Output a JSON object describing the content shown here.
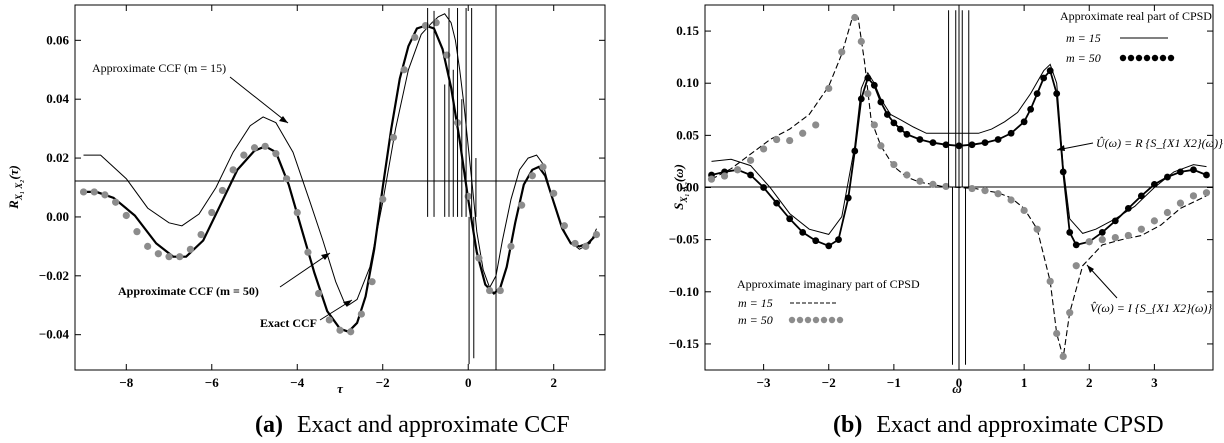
{
  "chart_data": [
    {
      "type": "line",
      "caption": {
        "tag": "(a)",
        "text": "Exact and approximate CCF"
      },
      "xlabel": "τ",
      "ylabel": "R_{X1 X2}(τ)",
      "xlim": [
        -9.2,
        3.2
      ],
      "ylim": [
        -0.052,
        0.072
      ],
      "xticks": [
        -8,
        -6,
        -4,
        -2,
        0,
        2
      ],
      "xtick_labels": [
        "−8",
        "−6",
        "−4",
        "−2",
        "0",
        "2"
      ],
      "yticks": [
        -0.04,
        -0.02,
        0.0,
        0.02,
        0.04,
        0.06
      ],
      "ytick_labels": [
        "−0.04",
        "−0.02",
        "0.00",
        "0.02",
        "0.04",
        "0.06"
      ],
      "annotations": [
        {
          "text": "Approximate CCF (m = 15)",
          "bold": false
        },
        {
          "text": "Approximate CCF (m = 50)",
          "bold": true
        },
        {
          "text": "Exact CCF",
          "bold": true
        }
      ],
      "series": [
        {
          "style": "thin-solid",
          "x": [
            -9.0,
            -8.6,
            -8.0,
            -7.5,
            -7.0,
            -6.7,
            -6.3,
            -5.9,
            -5.5,
            -5.1,
            -4.8,
            -4.5,
            -4.1,
            -3.7,
            -3.4,
            -3.1,
            -2.9,
            -2.8,
            -2.6,
            -2.3,
            -2.0,
            -1.7,
            -1.4,
            -1.1,
            -0.85,
            -0.7,
            -0.55,
            -0.4,
            -0.3,
            -0.2,
            -0.1,
            0.0,
            0.1,
            0.2,
            0.35,
            0.5,
            0.65,
            0.8,
            1.0,
            1.2,
            1.4,
            1.6,
            1.75,
            1.9,
            2.1,
            2.35,
            2.6,
            2.85,
            3.0
          ],
          "y": [
            0.021,
            0.021,
            0.013,
            0.003,
            -0.002,
            -0.003,
            0.001,
            0.01,
            0.022,
            0.031,
            0.034,
            0.032,
            0.022,
            0.005,
            -0.008,
            -0.022,
            -0.029,
            -0.03,
            -0.028,
            -0.017,
            0.005,
            0.03,
            0.05,
            0.062,
            0.066,
            0.068,
            0.069,
            0.066,
            0.06,
            0.05,
            0.038,
            0.024,
            0.01,
            -0.005,
            -0.018,
            -0.024,
            -0.02,
            -0.008,
            0.006,
            0.016,
            0.02,
            0.021,
            0.018,
            0.01,
            0.0,
            -0.008,
            -0.011,
            -0.009,
            -0.004
          ]
        },
        {
          "style": "thick-solid",
          "x": [
            -9.0,
            -8.7,
            -8.3,
            -7.8,
            -7.3,
            -6.9,
            -6.6,
            -6.2,
            -5.8,
            -5.4,
            -5.0,
            -4.75,
            -4.5,
            -4.2,
            -3.9,
            -3.6,
            -3.3,
            -3.0,
            -2.8,
            -2.6,
            -2.4,
            -2.2,
            -2.0,
            -1.8,
            -1.6,
            -1.4,
            -1.2,
            -1.0,
            -0.8,
            -0.6,
            -0.4,
            -0.2,
            0.0,
            0.2,
            0.4,
            0.6,
            0.75,
            0.9,
            1.1,
            1.3,
            1.5,
            1.65,
            1.8,
            2.0,
            2.2,
            2.4,
            2.6,
            2.8,
            3.0
          ],
          "y": [
            0.0085,
            0.0085,
            0.0065,
            0.0005,
            -0.009,
            -0.0135,
            -0.0135,
            -0.008,
            0.004,
            0.016,
            0.0225,
            0.024,
            0.022,
            0.011,
            -0.004,
            -0.019,
            -0.032,
            -0.038,
            -0.039,
            -0.036,
            -0.027,
            -0.011,
            0.01,
            0.03,
            0.047,
            0.058,
            0.064,
            0.065,
            0.064,
            0.057,
            0.044,
            0.026,
            0.006,
            -0.012,
            -0.023,
            -0.026,
            -0.024,
            -0.017,
            -0.002,
            0.011,
            0.016,
            0.017,
            0.014,
            0.005,
            -0.004,
            -0.009,
            -0.01,
            -0.009,
            -0.006
          ]
        },
        {
          "style": "grey-dots",
          "x": [
            -9.0,
            -8.75,
            -8.5,
            -8.25,
            -8.0,
            -7.75,
            -7.5,
            -7.25,
            -7.0,
            -6.75,
            -6.5,
            -6.25,
            -6.0,
            -5.75,
            -5.5,
            -5.25,
            -5.0,
            -4.75,
            -4.5,
            -4.25,
            -4.0,
            -3.75,
            -3.5,
            -3.25,
            -3.0,
            -2.75,
            -2.5,
            -2.25,
            -2.0,
            -1.75,
            -1.5,
            -1.25,
            -1.0,
            -0.75,
            -0.5,
            -0.25,
            0.0,
            0.25,
            0.5,
            0.75,
            1.0,
            1.25,
            1.5,
            1.75,
            2.0,
            2.25,
            2.5,
            2.75,
            3.0
          ],
          "y": [
            0.0085,
            0.0085,
            0.0075,
            0.005,
            0.0005,
            -0.005,
            -0.01,
            -0.0125,
            -0.0135,
            -0.0135,
            -0.011,
            -0.006,
            0.0015,
            0.009,
            0.016,
            0.021,
            0.0235,
            0.024,
            0.0215,
            0.013,
            0.0015,
            -0.012,
            -0.026,
            -0.035,
            -0.0385,
            -0.039,
            -0.033,
            -0.022,
            0.006,
            0.027,
            0.05,
            0.061,
            0.065,
            0.066,
            0.055,
            0.032,
            0.007,
            -0.014,
            -0.025,
            -0.025,
            -0.01,
            0.004,
            0.014,
            0.017,
            0.008,
            -0.003,
            -0.009,
            -0.01,
            -0.006
          ]
        },
        {
          "style": "spikes",
          "x": [
            -0.95,
            -0.8,
            -0.55,
            -0.45,
            -0.35,
            -0.25,
            -0.15,
            -0.05,
            0.02,
            0.08,
            0.13,
            0.18
          ],
          "y": [
            0.071,
            0.07,
            0.045,
            0.071,
            0.05,
            0.071,
            0.04,
            0.071,
            -0.05,
            0.071,
            -0.048,
            0.02
          ]
        }
      ]
    },
    {
      "type": "line",
      "caption": {
        "tag": "(b)",
        "text": "Exact and approximate CPSD"
      },
      "xlabel": "ω",
      "ylabel": "S_{X1 X2}(ω)",
      "xlim": [
        -3.9,
        3.9
      ],
      "ylim": [
        -0.175,
        0.175
      ],
      "xticks": [
        -3,
        -2,
        -1,
        0,
        1,
        2,
        3
      ],
      "xtick_labels": [
        "−3",
        "−2",
        "−1",
        "0",
        "1",
        "2",
        "3"
      ],
      "yticks": [
        -0.15,
        -0.1,
        -0.05,
        0.0,
        0.05,
        0.1,
        0.15
      ],
      "ytick_labels": [
        "−0.15",
        "−0.10",
        "−0.05",
        "0.00",
        "0.05",
        "0.10",
        "0.15"
      ],
      "legend_top_right": {
        "title": "Approximate real part of CPSD",
        "entries": [
          {
            "label": "m = 15",
            "style": "thin-solid"
          },
          {
            "label": "m = 50",
            "style": "black-dots"
          }
        ]
      },
      "legend_bottom_left": {
        "title": "Approximate imaginary part of CPSD",
        "entries": [
          {
            "label": "m = 15",
            "style": "dashed"
          },
          {
            "label": "m = 50",
            "style": "grey-dots"
          }
        ]
      },
      "annotations": [
        {
          "text": "Û(ω) = R {S_{X1 X2}(ω)}"
        },
        {
          "text": "V̂(ω) = I {S_{X1 X2}(ω)}"
        }
      ],
      "series": [
        {
          "name": "real part",
          "style": "thin-solid",
          "x": [
            -3.8,
            -3.5,
            -3.2,
            -2.9,
            -2.6,
            -2.3,
            -2.0,
            -1.8,
            -1.6,
            -1.5,
            -1.4,
            -1.3,
            -1.2,
            -1.05,
            -0.9,
            -0.7,
            -0.5,
            -0.3,
            0.3,
            0.5,
            0.7,
            0.9,
            1.1,
            1.3,
            1.4,
            1.5,
            1.6,
            1.7,
            1.9,
            2.1,
            2.4,
            2.7,
            3.0,
            3.3,
            3.6,
            3.8
          ],
          "y": [
            0.025,
            0.027,
            0.021,
            0.0,
            -0.025,
            -0.04,
            -0.045,
            -0.028,
            0.04,
            0.095,
            0.11,
            0.1,
            0.085,
            0.07,
            0.065,
            0.058,
            0.052,
            0.052,
            0.052,
            0.056,
            0.063,
            0.072,
            0.09,
            0.112,
            0.118,
            0.1,
            0.02,
            -0.03,
            -0.044,
            -0.04,
            -0.03,
            -0.018,
            0.0,
            0.015,
            0.022,
            0.02
          ]
        },
        {
          "name": "real part",
          "style": "black-dots-line",
          "x": [
            -3.8,
            -3.6,
            -3.4,
            -3.2,
            -3.0,
            -2.8,
            -2.6,
            -2.4,
            -2.2,
            -2.0,
            -1.85,
            -1.7,
            -1.6,
            -1.5,
            -1.4,
            -1.3,
            -1.2,
            -1.1,
            -1.0,
            -0.9,
            -0.8,
            -0.6,
            -0.4,
            -0.2,
            0.0,
            0.2,
            0.4,
            0.6,
            0.8,
            1.0,
            1.1,
            1.2,
            1.3,
            1.4,
            1.5,
            1.6,
            1.7,
            1.8,
            2.0,
            2.2,
            2.4,
            2.6,
            2.8,
            3.0,
            3.2,
            3.4,
            3.6,
            3.8
          ],
          "y": [
            0.012,
            0.015,
            0.017,
            0.012,
            0.0,
            -0.015,
            -0.03,
            -0.043,
            -0.051,
            -0.056,
            -0.05,
            -0.01,
            0.035,
            0.085,
            0.105,
            0.098,
            0.082,
            0.07,
            0.062,
            0.056,
            0.051,
            0.046,
            0.043,
            0.041,
            0.04,
            0.041,
            0.043,
            0.046,
            0.052,
            0.063,
            0.075,
            0.09,
            0.105,
            0.112,
            0.09,
            0.015,
            -0.043,
            -0.055,
            -0.052,
            -0.043,
            -0.032,
            -0.02,
            -0.008,
            0.003,
            0.01,
            0.015,
            0.017,
            0.012
          ]
        },
        {
          "name": "imaginary part",
          "style": "dashed",
          "x": [
            -3.8,
            -3.5,
            -3.2,
            -2.9,
            -2.6,
            -2.3,
            -2.0,
            -1.8,
            -1.65,
            -1.55,
            -1.45,
            -1.35,
            -1.2,
            -1.0,
            -0.8,
            -0.6,
            -0.4,
            -0.25,
            0.25,
            0.4,
            0.6,
            0.8,
            1.0,
            1.2,
            1.4,
            1.5,
            1.6,
            1.7,
            1.9,
            2.2,
            2.5,
            2.8,
            3.1,
            3.4,
            3.8
          ],
          "y": [
            0.008,
            0.018,
            0.032,
            0.046,
            0.056,
            0.07,
            0.097,
            0.128,
            0.16,
            0.163,
            0.12,
            0.065,
            0.04,
            0.02,
            0.01,
            0.005,
            0.003,
            0.001,
            -0.001,
            -0.003,
            -0.005,
            -0.01,
            -0.02,
            -0.04,
            -0.09,
            -0.14,
            -0.163,
            -0.12,
            -0.075,
            -0.055,
            -0.05,
            -0.046,
            -0.036,
            -0.02,
            -0.008
          ]
        },
        {
          "name": "imaginary part",
          "style": "grey-dots",
          "x": [
            -3.8,
            -3.6,
            -3.4,
            -3.2,
            -3.0,
            -2.8,
            -2.6,
            -2.4,
            -2.2,
            -2.0,
            -1.8,
            -1.6,
            -1.5,
            -1.4,
            -1.3,
            -1.2,
            -1.0,
            -0.8,
            -0.6,
            -0.4,
            -0.2,
            0.2,
            0.4,
            0.6,
            0.8,
            1.0,
            1.2,
            1.4,
            1.5,
            1.6,
            1.7,
            1.8,
            2.0,
            2.2,
            2.4,
            2.6,
            2.8,
            3.0,
            3.2,
            3.4,
            3.6,
            3.8
          ],
          "y": [
            0.008,
            0.011,
            0.017,
            0.026,
            0.037,
            0.046,
            0.045,
            0.052,
            0.06,
            0.095,
            0.13,
            0.163,
            0.14,
            0.09,
            0.06,
            0.04,
            0.022,
            0.012,
            0.006,
            0.003,
            0.001,
            -0.001,
            -0.003,
            -0.006,
            -0.012,
            -0.022,
            -0.04,
            -0.09,
            -0.14,
            -0.162,
            -0.12,
            -0.075,
            -0.052,
            -0.05,
            -0.048,
            -0.046,
            -0.04,
            -0.032,
            -0.024,
            -0.015,
            -0.008,
            -0.005
          ]
        },
        {
          "style": "spikes",
          "x": [
            -0.16,
            -0.1,
            -0.05,
            0.0,
            0.05,
            0.1,
            0.15
          ],
          "y": [
            0.17,
            -0.17,
            0.17,
            -0.17,
            0.17,
            -0.17,
            0.17
          ]
        }
      ]
    }
  ]
}
